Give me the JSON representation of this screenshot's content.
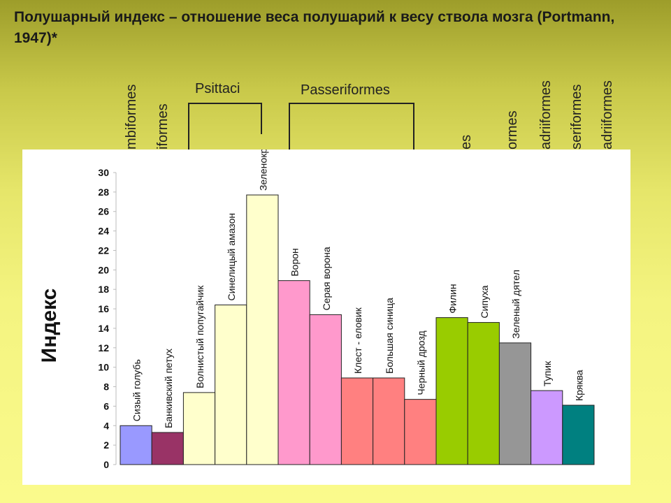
{
  "title": "Полушарный индекс – отношение веса полушарий к весу ствола мозга  (Portmann, 1947)*",
  "orders": {
    "horizontal": [
      "Psittaci",
      "Passeriformes"
    ],
    "vertical_left": [
      "mbiformes",
      "iformes"
    ],
    "vertical_right": [
      "es",
      "ormes",
      "adriiformes",
      "seriformes",
      "adriiformes"
    ]
  },
  "chart_data": {
    "type": "bar",
    "ylabel": "Индекс",
    "ylim": [
      0,
      30
    ],
    "yticks": [
      "0",
      "2",
      "4",
      "6",
      "8",
      "10",
      "12",
      "14",
      "16",
      "18",
      "20",
      "22",
      "24",
      "26",
      "28",
      "30"
    ],
    "categories": [
      "Сизый голубь",
      "Банкивский петух",
      "Волнистый попугайчик",
      "Синелицый амазон",
      "Зеленокрылый ара",
      "Ворон",
      "Серая ворона",
      "Клест - еловик",
      "Большая синица",
      "Черный дрозд",
      "Филин",
      "Сипуха",
      "Зеленый дятел",
      "Тупик",
      "Кряква"
    ],
    "values": [
      4.0,
      3.3,
      7.4,
      16.4,
      27.7,
      18.9,
      15.4,
      8.9,
      8.9,
      6.7,
      15.1,
      14.6,
      12.5,
      7.6,
      6.1
    ],
    "colors": [
      "#9999ff",
      "#993366",
      "#ffffcc",
      "#ffffcc",
      "#ffffcc",
      "#ff99cc",
      "#ff99cc",
      "#ff8080",
      "#ff8080",
      "#ff8080",
      "#99cc00",
      "#99cc00",
      "#969696",
      "#cc99ff",
      "#008080"
    ],
    "grid": false
  }
}
